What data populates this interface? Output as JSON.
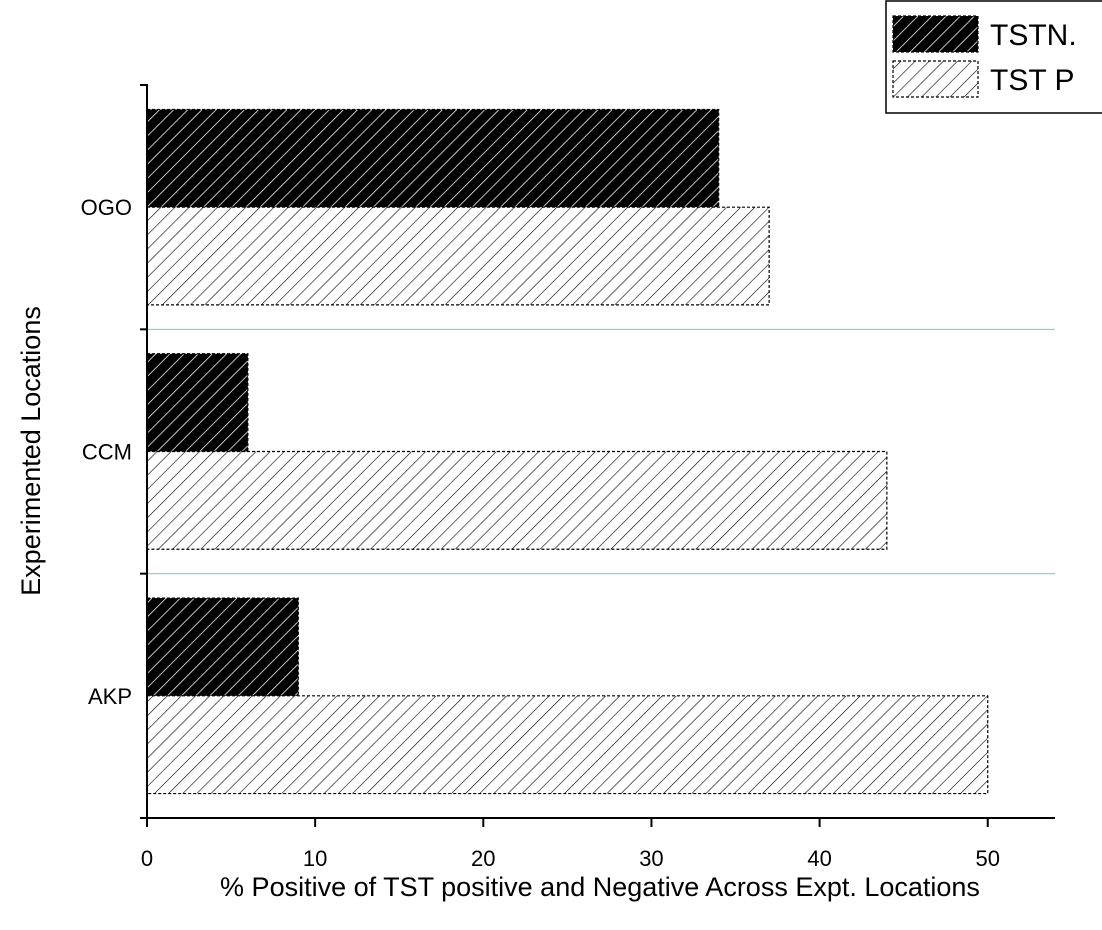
{
  "chart_data": {
    "type": "hbar",
    "x_label": "% Positive of TST positive and Negative Across Expt. Locations",
    "y_label": "Experimented Locations",
    "categories": [
      "AKP",
      "CCM",
      "OGO"
    ],
    "series": [
      {
        "name": "TSTN.",
        "color": "#000000",
        "values": [
          9,
          6,
          34
        ]
      },
      {
        "name": "TST P",
        "color": "#ffffff",
        "values": [
          50,
          44,
          37
        ]
      }
    ],
    "xlim": [
      0,
      54
    ],
    "xticks": [
      0,
      10,
      20,
      30,
      40,
      50
    ],
    "separator_color": "#40e0e0",
    "legend": "top-right"
  }
}
